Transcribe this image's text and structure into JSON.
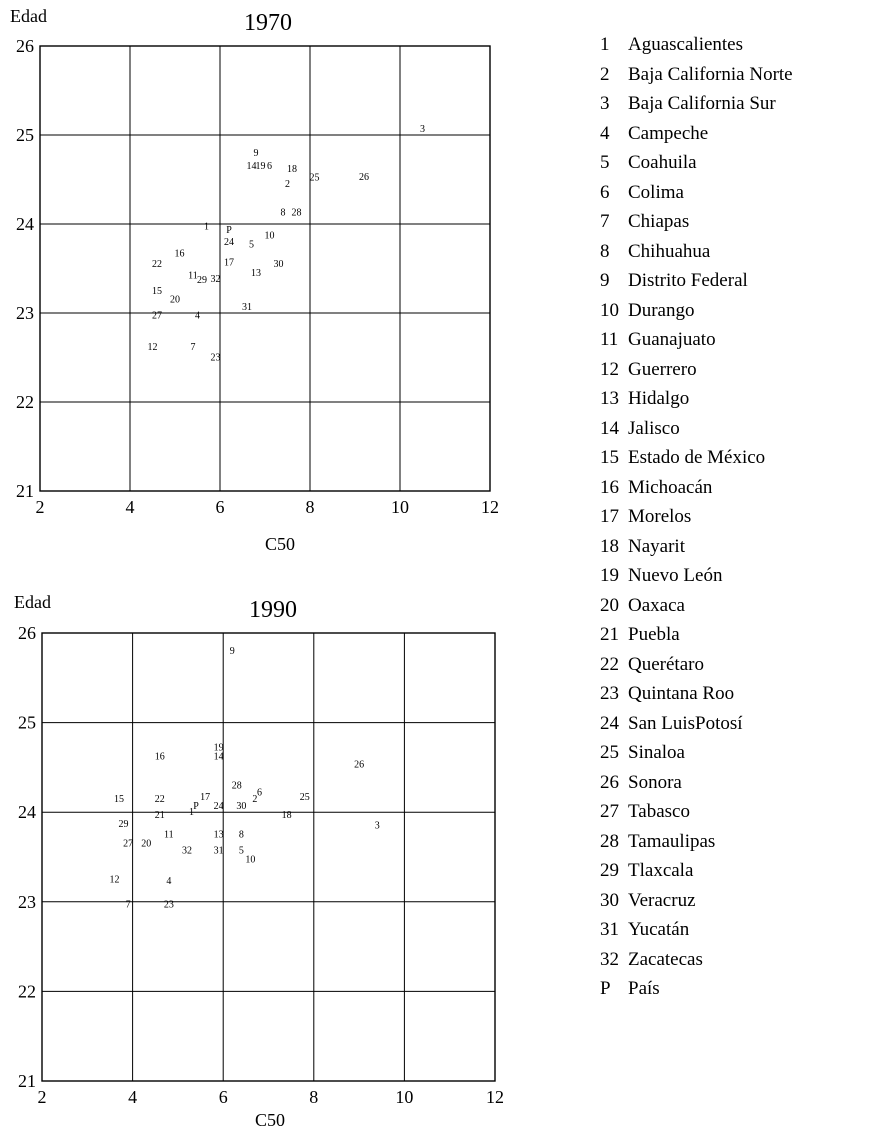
{
  "chart_data": [
    {
      "type": "scatter",
      "title": "1970",
      "xlabel": "C50",
      "ylabel": "Edad",
      "xlim": [
        2,
        12
      ],
      "ylim": [
        21,
        26
      ],
      "xticks": [
        "2",
        "4",
        "6",
        "8",
        "10",
        "12"
      ],
      "yticks": [
        "21",
        "22",
        "23",
        "24",
        "25",
        "26"
      ],
      "points": [
        {
          "label": "9",
          "x": 6.8,
          "y": 24.8
        },
        {
          "label": "14",
          "x": 6.7,
          "y": 24.65
        },
        {
          "label": "19",
          "x": 6.9,
          "y": 24.65
        },
        {
          "label": "6",
          "x": 7.1,
          "y": 24.65
        },
        {
          "label": "18",
          "x": 7.6,
          "y": 24.62
        },
        {
          "label": "25",
          "x": 8.1,
          "y": 24.52
        },
        {
          "label": "26",
          "x": 9.2,
          "y": 24.53
        },
        {
          "label": "2",
          "x": 7.5,
          "y": 24.45
        },
        {
          "label": "3",
          "x": 10.5,
          "y": 25.07
        },
        {
          "label": "8",
          "x": 7.4,
          "y": 24.13
        },
        {
          "label": "28",
          "x": 7.7,
          "y": 24.13
        },
        {
          "label": "1",
          "x": 5.7,
          "y": 23.97
        },
        {
          "label": "P",
          "x": 6.2,
          "y": 23.93
        },
        {
          "label": "10",
          "x": 7.1,
          "y": 23.87
        },
        {
          "label": "24",
          "x": 6.2,
          "y": 23.8
        },
        {
          "label": "5",
          "x": 6.7,
          "y": 23.77
        },
        {
          "label": "16",
          "x": 5.1,
          "y": 23.67
        },
        {
          "label": "22",
          "x": 4.6,
          "y": 23.55
        },
        {
          "label": "17",
          "x": 6.2,
          "y": 23.57
        },
        {
          "label": "30",
          "x": 7.3,
          "y": 23.55
        },
        {
          "label": "13",
          "x": 6.8,
          "y": 23.45
        },
        {
          "label": "11",
          "x": 5.4,
          "y": 23.42
        },
        {
          "label": "29",
          "x": 5.6,
          "y": 23.37
        },
        {
          "label": "32",
          "x": 5.9,
          "y": 23.38
        },
        {
          "label": "15",
          "x": 4.6,
          "y": 23.25
        },
        {
          "label": "20",
          "x": 5.0,
          "y": 23.15
        },
        {
          "label": "31",
          "x": 6.6,
          "y": 23.07
        },
        {
          "label": "27",
          "x": 4.6,
          "y": 22.97
        },
        {
          "label": "4",
          "x": 5.5,
          "y": 22.97
        },
        {
          "label": "12",
          "x": 4.5,
          "y": 22.62
        },
        {
          "label": "7",
          "x": 5.4,
          "y": 22.62
        },
        {
          "label": "23",
          "x": 5.9,
          "y": 22.5
        }
      ]
    },
    {
      "type": "scatter",
      "title": "1990",
      "xlabel": "C50",
      "ylabel": "Edad",
      "xlim": [
        2,
        12
      ],
      "ylim": [
        21,
        26
      ],
      "xticks": [
        "2",
        "4",
        "6",
        "8",
        "10",
        "12"
      ],
      "yticks": [
        "21",
        "22",
        "23",
        "24",
        "25",
        "26"
      ],
      "points": [
        {
          "label": "9",
          "x": 6.2,
          "y": 25.8
        },
        {
          "label": "19",
          "x": 5.9,
          "y": 24.72
        },
        {
          "label": "14",
          "x": 5.9,
          "y": 24.62
        },
        {
          "label": "16",
          "x": 4.6,
          "y": 24.62
        },
        {
          "label": "26",
          "x": 9.0,
          "y": 24.53
        },
        {
          "label": "28",
          "x": 6.3,
          "y": 24.3
        },
        {
          "label": "6",
          "x": 6.8,
          "y": 24.22
        },
        {
          "label": "2",
          "x": 6.7,
          "y": 24.15
        },
        {
          "label": "25",
          "x": 7.8,
          "y": 24.17
        },
        {
          "label": "15",
          "x": 3.7,
          "y": 24.15
        },
        {
          "label": "22",
          "x": 4.6,
          "y": 24.15
        },
        {
          "label": "17",
          "x": 5.6,
          "y": 24.17
        },
        {
          "label": "P",
          "x": 5.4,
          "y": 24.07
        },
        {
          "label": "24",
          "x": 5.9,
          "y": 24.07
        },
        {
          "label": "30",
          "x": 6.4,
          "y": 24.07
        },
        {
          "label": "18",
          "x": 7.4,
          "y": 23.97
        },
        {
          "label": "21",
          "x": 4.6,
          "y": 23.97
        },
        {
          "label": "1",
          "x": 5.3,
          "y": 24.0
        },
        {
          "label": "3",
          "x": 9.4,
          "y": 23.85
        },
        {
          "label": "29",
          "x": 3.8,
          "y": 23.87
        },
        {
          "label": "11",
          "x": 4.8,
          "y": 23.75
        },
        {
          "label": "13",
          "x": 5.9,
          "y": 23.75
        },
        {
          "label": "8",
          "x": 6.4,
          "y": 23.75
        },
        {
          "label": "27",
          "x": 3.9,
          "y": 23.65
        },
        {
          "label": "20",
          "x": 4.3,
          "y": 23.65
        },
        {
          "label": "32",
          "x": 5.2,
          "y": 23.57
        },
        {
          "label": "31",
          "x": 5.9,
          "y": 23.57
        },
        {
          "label": "5",
          "x": 6.4,
          "y": 23.57
        },
        {
          "label": "10",
          "x": 6.6,
          "y": 23.47
        },
        {
          "label": "12",
          "x": 3.6,
          "y": 23.25
        },
        {
          "label": "4",
          "x": 4.8,
          "y": 23.23
        },
        {
          "label": "7",
          "x": 3.9,
          "y": 22.97
        },
        {
          "label": "23",
          "x": 4.8,
          "y": 22.97
        }
      ]
    }
  ],
  "legend": [
    {
      "code": "1",
      "name": "Aguascalientes"
    },
    {
      "code": "2",
      "name": "Baja California Norte"
    },
    {
      "code": "3",
      "name": "Baja California Sur"
    },
    {
      "code": "4",
      "name": "Campeche"
    },
    {
      "code": "5",
      "name": "Coahuila"
    },
    {
      "code": "6",
      "name": "Colima"
    },
    {
      "code": "7",
      "name": "Chiapas"
    },
    {
      "code": "8",
      "name": "Chihuahua"
    },
    {
      "code": "9",
      "name": "Distrito Federal"
    },
    {
      "code": "10",
      "name": "Durango"
    },
    {
      "code": "11",
      "name": "Guanajuato"
    },
    {
      "code": "12",
      "name": "Guerrero"
    },
    {
      "code": "13",
      "name": "Hidalgo"
    },
    {
      "code": "14",
      "name": "Jalisco"
    },
    {
      "code": "15",
      "name": "Estado de México"
    },
    {
      "code": "16",
      "name": "Michoacán"
    },
    {
      "code": "17",
      "name": "Morelos"
    },
    {
      "code": "18",
      "name": "Nayarit"
    },
    {
      "code": "19",
      "name": "Nuevo León"
    },
    {
      "code": "20",
      "name": "Oaxaca"
    },
    {
      "code": "21",
      "name": "Puebla"
    },
    {
      "code": "22",
      "name": "Querétaro"
    },
    {
      "code": "23",
      "name": "Quintana Roo"
    },
    {
      "code": "24",
      "name": "San LuisPotosí"
    },
    {
      "code": "25",
      "name": "Sinaloa"
    },
    {
      "code": "26",
      "name": "Sonora"
    },
    {
      "code": "27",
      "name": "Tabasco"
    },
    {
      "code": "28",
      "name": "Tamaulipas"
    },
    {
      "code": "29",
      "name": "Tlaxcala"
    },
    {
      "code": "30",
      "name": "Veracruz"
    },
    {
      "code": "31",
      "name": "Yucatán"
    },
    {
      "code": "32",
      "name": "Zacatecas"
    },
    {
      "code": "P",
      "name": "País"
    }
  ]
}
